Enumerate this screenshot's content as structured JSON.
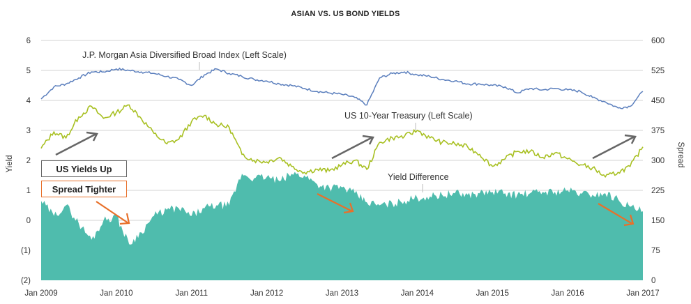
{
  "chart_data": {
    "type": "line",
    "title": "ASIAN VS. US BOND YIELDS",
    "xlabel": "",
    "ylabel": "Yield",
    "ylabel_right": "Spread",
    "x_ticks": [
      "Jan 2009",
      "Jan 2010",
      "Jan 2011",
      "Jan 2012",
      "Jan 2013",
      "Jan 2014",
      "Jan 2015",
      "Jan 2016",
      "Jan 2017"
    ],
    "y_ticks_left": [
      "6",
      "5",
      "4",
      "3",
      "2",
      "1",
      "0",
      "(1)",
      "(2)"
    ],
    "y_ticks_right": [
      "600",
      "525",
      "450",
      "375",
      "300",
      "225",
      "150",
      "75",
      "0"
    ],
    "ylim_left": [
      -2,
      6
    ],
    "ylim_right": [
      0,
      600
    ],
    "grid": true,
    "x": [
      2009.0,
      2009.17,
      2009.33,
      2009.5,
      2009.67,
      2009.83,
      2010.0,
      2010.17,
      2010.33,
      2010.5,
      2010.67,
      2010.83,
      2011.0,
      2011.17,
      2011.33,
      2011.5,
      2011.67,
      2011.83,
      2012.0,
      2012.17,
      2012.33,
      2012.5,
      2012.67,
      2012.83,
      2013.0,
      2013.17,
      2013.33,
      2013.5,
      2013.67,
      2013.83,
      2014.0,
      2014.17,
      2014.33,
      2014.5,
      2014.67,
      2014.83,
      2015.0,
      2015.17,
      2015.33,
      2015.5,
      2015.67,
      2015.83,
      2016.0,
      2016.17,
      2016.33,
      2016.5,
      2016.67,
      2016.83,
      2017.0
    ],
    "series": [
      {
        "name": "J.P. Morgan Asia Diversified Broad Index (Left Scale)",
        "axis": "left",
        "color": "#5b7fbd",
        "values": [
          4.05,
          4.45,
          4.55,
          4.75,
          4.95,
          4.95,
          5.05,
          5.0,
          4.95,
          4.9,
          4.8,
          4.7,
          4.5,
          4.85,
          5.05,
          4.9,
          4.8,
          4.7,
          4.65,
          4.55,
          4.5,
          4.4,
          4.3,
          4.25,
          4.2,
          4.1,
          3.85,
          4.75,
          4.9,
          4.95,
          4.85,
          4.8,
          4.7,
          4.65,
          4.55,
          4.55,
          4.5,
          4.45,
          4.25,
          4.4,
          4.35,
          4.4,
          4.35,
          4.3,
          4.1,
          3.95,
          3.75,
          3.8,
          4.3
        ]
      },
      {
        "name": "US 10-Year Treasury (Left Scale)",
        "axis": "left",
        "color": "#a8c022",
        "values": [
          2.4,
          2.95,
          2.75,
          3.45,
          3.8,
          3.4,
          3.6,
          3.85,
          3.4,
          2.9,
          2.55,
          2.7,
          3.3,
          3.5,
          3.2,
          3.1,
          2.2,
          2.0,
          1.95,
          2.1,
          1.8,
          1.6,
          1.7,
          1.65,
          1.85,
          2.0,
          1.7,
          2.6,
          2.75,
          2.8,
          3.0,
          2.75,
          2.6,
          2.55,
          2.45,
          2.2,
          1.8,
          2.05,
          2.3,
          2.3,
          2.1,
          2.25,
          2.05,
          1.85,
          1.75,
          1.45,
          1.6,
          1.8,
          2.45
        ]
      },
      {
        "name": "Yield Difference",
        "axis": "left",
        "type": "area",
        "color": "#4fbcad",
        "values": [
          0.65,
          0.15,
          0.5,
          -0.1,
          -0.65,
          0.0,
          0.15,
          -0.8,
          -0.4,
          0.15,
          0.35,
          0.4,
          0.15,
          0.4,
          0.5,
          0.5,
          1.55,
          1.4,
          1.45,
          1.3,
          1.55,
          1.5,
          1.2,
          1.1,
          1.1,
          0.9,
          0.6,
          0.5,
          0.55,
          0.65,
          0.75,
          0.8,
          0.85,
          0.9,
          0.85,
          0.9,
          0.95,
          0.9,
          0.85,
          0.9,
          0.95,
          0.95,
          1.0,
          0.9,
          0.85,
          0.9,
          0.7,
          0.45,
          0.3
        ]
      }
    ],
    "annotations": [
      {
        "text": "J.P. Morgan Asia Diversified Broad Index (Left Scale)",
        "target": "series_0"
      },
      {
        "text": "US 10-Year Treasury (Left Scale)",
        "target": "series_1"
      },
      {
        "text": "Yield Difference",
        "target": "series_2"
      },
      {
        "text": "US Yields Up",
        "style": "grey box"
      },
      {
        "text": "Spread Tighter",
        "style": "orange box"
      }
    ]
  },
  "labels": {
    "title": "ASIAN VS. US BOND YIELDS",
    "ylabel_left": "Yield",
    "ylabel_right": "Spread",
    "series_asia": "J.P. Morgan Asia Diversified Broad Index (Left Scale)",
    "series_us": "US 10-Year Treasury (Left Scale)",
    "series_diff": "Yield Difference",
    "callout_yields": "US Yields Up",
    "callout_spread": "Spread Tighter"
  },
  "colors": {
    "asia": "#5b7fbd",
    "us": "#a8c022",
    "diff": "#4fbcad",
    "grid": "#dcdcdc",
    "arrow_grey": "#666666",
    "arrow_orange": "#e8702a"
  }
}
